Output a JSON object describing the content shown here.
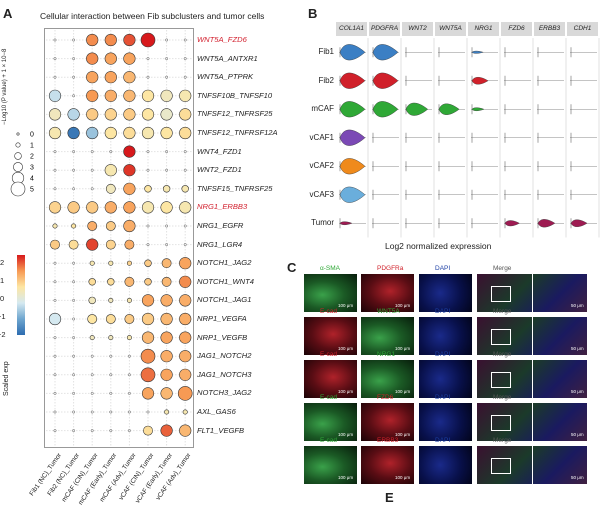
{
  "panel_a": {
    "letter": "A",
    "title": "Cellular interaction between Fib subclusters and tumor cells",
    "size_legend_title": "−Log10 (P value) + 1 × 10−8",
    "size_legend_values": [
      "0",
      "1",
      "2",
      "3",
      "4",
      "5"
    ],
    "color_legend_title": "Scaled exp",
    "color_legend_values": [
      "2",
      "1",
      "0",
      "−1",
      "−2"
    ],
    "x_labels": [
      "Fib1 (NC)_Tumor",
      "Fib2 (NC)_Tumor",
      "mCAF (CIN)_Tumor",
      "mCAF (Early)_Tumor",
      "mCAF (Adv)_Tumor",
      "vCAF (CIN)_Tumor",
      "vCAF (Early)_Tumor",
      "vCAF (Adv)_Tumor"
    ],
    "pairs": [
      {
        "label": "WNT5A_FZD6",
        "highlight": true
      },
      {
        "label": "WNT5A_ANTXR1",
        "highlight": false
      },
      {
        "label": "WNT5A_PTPRK",
        "highlight": false
      },
      {
        "label": "TNFSF10B_TNFSF10",
        "highlight": false
      },
      {
        "label": "TNFSF12_TNFRSF25",
        "highlight": false
      },
      {
        "label": "TNFSF12_TNFRSF12A",
        "highlight": false
      },
      {
        "label": "WNT4_FZD1",
        "highlight": false
      },
      {
        "label": "WNT2_FZD1",
        "highlight": false
      },
      {
        "label": "TNFSF15_TNFRSF25",
        "highlight": false
      },
      {
        "label": "NRG1_ERBB3",
        "highlight": true
      },
      {
        "label": "NRG1_EGFR",
        "highlight": false
      },
      {
        "label": "NRG1_LGR4",
        "highlight": false
      },
      {
        "label": "NOTCH1_JAG2",
        "highlight": false
      },
      {
        "label": "NOTCH1_WNT4",
        "highlight": false
      },
      {
        "label": "NOTCH1_JAG1",
        "highlight": false
      },
      {
        "label": "NRP1_VEGFA",
        "highlight": false
      },
      {
        "label": "NRP1_VEGFB",
        "highlight": false
      },
      {
        "label": "JAG1_NOTCH2",
        "highlight": false
      },
      {
        "label": "JAG1_NOTCH3",
        "highlight": false
      },
      {
        "label": "NOTCH3_JAG2",
        "highlight": false
      },
      {
        "label": "AXL_GAS6",
        "highlight": false
      },
      {
        "label": "FLT1_VEGFB",
        "highlight": false
      }
    ],
    "dots": [
      [
        [
          0,
          0
        ],
        [
          0,
          0
        ],
        [
          4,
          1.2
        ],
        [
          4,
          1.2
        ],
        [
          4,
          1.6
        ],
        [
          5,
          2.2
        ],
        [
          0,
          0
        ],
        [
          0,
          0
        ]
      ],
      [
        [
          0,
          0
        ],
        [
          0,
          0
        ],
        [
          4,
          1.2
        ],
        [
          4,
          1.0
        ],
        [
          4,
          1.0
        ],
        [
          0,
          0
        ],
        [
          0,
          0
        ],
        [
          0,
          0
        ]
      ],
      [
        [
          0,
          0
        ],
        [
          0,
          0
        ],
        [
          4,
          1.0
        ],
        [
          4,
          1.0
        ],
        [
          4,
          0.8
        ],
        [
          0,
          0
        ],
        [
          0,
          0
        ],
        [
          0,
          0
        ]
      ],
      [
        [
          4,
          -0.4
        ],
        [
          0,
          0
        ],
        [
          4,
          1.1
        ],
        [
          4,
          0.9
        ],
        [
          4,
          0.8
        ],
        [
          4,
          0.3
        ],
        [
          4,
          0.1
        ],
        [
          4,
          0.2
        ]
      ],
      [
        [
          4,
          0.1
        ],
        [
          4,
          -0.5
        ],
        [
          4,
          0.6
        ],
        [
          4,
          0.5
        ],
        [
          4,
          0.6
        ],
        [
          4,
          0.3
        ],
        [
          4,
          0.0
        ],
        [
          4,
          0.4
        ]
      ],
      [
        [
          4,
          0.2
        ],
        [
          4,
          -1.8
        ],
        [
          4,
          -0.7
        ],
        [
          4,
          0.3
        ],
        [
          4,
          0.4
        ],
        [
          4,
          0.2
        ],
        [
          4,
          0.3
        ],
        [
          4,
          0.4
        ]
      ],
      [
        [
          0,
          0
        ],
        [
          0,
          0
        ],
        [
          0,
          0
        ],
        [
          0,
          0
        ],
        [
          4,
          2.0
        ],
        [
          0,
          0
        ],
        [
          0,
          0
        ],
        [
          0,
          0
        ]
      ],
      [
        [
          0,
          0
        ],
        [
          0,
          0
        ],
        [
          0,
          0
        ],
        [
          4,
          0.2
        ],
        [
          4,
          1.8
        ],
        [
          0,
          0
        ],
        [
          0,
          0
        ],
        [
          0,
          0
        ]
      ],
      [
        [
          0,
          0
        ],
        [
          0,
          0
        ],
        [
          0,
          0
        ],
        [
          3,
          0.1
        ],
        [
          4,
          1.0
        ],
        [
          2,
          0.3
        ],
        [
          2,
          0.2
        ],
        [
          2,
          0.2
        ]
      ],
      [
        [
          4,
          0.5
        ],
        [
          4,
          0.6
        ],
        [
          4,
          0.6
        ],
        [
          4,
          0.9
        ],
        [
          4,
          1.0
        ],
        [
          4,
          0.2
        ],
        [
          4,
          0.3
        ],
        [
          4,
          0.2
        ]
      ],
      [
        [
          1,
          0.2
        ],
        [
          1,
          0.3
        ],
        [
          3,
          0.9
        ],
        [
          3,
          0.6
        ],
        [
          4,
          0.9
        ],
        [
          0,
          0
        ],
        [
          0,
          0
        ],
        [
          0,
          0
        ]
      ],
      [
        [
          3,
          0.6
        ],
        [
          3,
          0.4
        ],
        [
          4,
          1.7
        ],
        [
          3,
          0.5
        ],
        [
          3,
          0.9
        ],
        [
          0,
          0
        ],
        [
          0,
          0
        ],
        [
          0,
          0
        ]
      ],
      [
        [
          0,
          0
        ],
        [
          0,
          0
        ],
        [
          1,
          0.2
        ],
        [
          1,
          0.2
        ],
        [
          1,
          0.5
        ],
        [
          2,
          0.6
        ],
        [
          3,
          0.8
        ],
        [
          4,
          1.0
        ]
      ],
      [
        [
          0,
          0
        ],
        [
          0,
          0
        ],
        [
          2,
          0.4
        ],
        [
          2,
          0.4
        ],
        [
          3,
          0.8
        ],
        [
          2,
          0.6
        ],
        [
          3,
          0.8
        ],
        [
          4,
          1.2
        ]
      ],
      [
        [
          0,
          0
        ],
        [
          0,
          0
        ],
        [
          2,
          0.1
        ],
        [
          1,
          0.1
        ],
        [
          1,
          0.2
        ],
        [
          4,
          1.0
        ],
        [
          4,
          0.9
        ],
        [
          4,
          0.9
        ]
      ],
      [
        [
          4,
          -0.3
        ],
        [
          0,
          0
        ],
        [
          3,
          0.3
        ],
        [
          3,
          0.4
        ],
        [
          3,
          0.6
        ],
        [
          4,
          0.6
        ],
        [
          4,
          0.8
        ],
        [
          4,
          0.9
        ]
      ],
      [
        [
          0,
          0
        ],
        [
          0,
          0
        ],
        [
          1,
          0.1
        ],
        [
          1,
          0.1
        ],
        [
          1,
          0.2
        ],
        [
          4,
          0.8
        ],
        [
          4,
          1.0
        ],
        [
          4,
          1.0
        ]
      ],
      [
        [
          0,
          0
        ],
        [
          0,
          0
        ],
        [
          0,
          0
        ],
        [
          0,
          0
        ],
        [
          0,
          0
        ],
        [
          5,
          1.2
        ],
        [
          4,
          0.9
        ],
        [
          4,
          0.9
        ]
      ],
      [
        [
          0,
          0
        ],
        [
          0,
          0
        ],
        [
          0,
          0
        ],
        [
          0,
          0
        ],
        [
          0,
          0
        ],
        [
          5,
          1.4
        ],
        [
          4,
          1.0
        ],
        [
          4,
          0.9
        ]
      ],
      [
        [
          0,
          0
        ],
        [
          0,
          0
        ],
        [
          0,
          0
        ],
        [
          0,
          0
        ],
        [
          0,
          0
        ],
        [
          4,
          1.0
        ],
        [
          4,
          0.8
        ],
        [
          5,
          1.1
        ]
      ],
      [
        [
          0,
          0
        ],
        [
          0,
          0
        ],
        [
          0,
          0
        ],
        [
          0,
          0
        ],
        [
          0,
          0
        ],
        [
          0,
          0
        ],
        [
          1,
          0.2
        ],
        [
          1,
          0.2
        ]
      ],
      [
        [
          0,
          0
        ],
        [
          0,
          0
        ],
        [
          0,
          0
        ],
        [
          0,
          0
        ],
        [
          0,
          0
        ],
        [
          3,
          0.4
        ],
        [
          4,
          1.5
        ],
        [
          4,
          0.8
        ]
      ]
    ]
  },
  "panel_b": {
    "letter": "B",
    "genes": [
      "COL1A1",
      "PDGFRA",
      "WNT2",
      "WNT5A",
      "NRG1",
      "FZD6",
      "ERBB3",
      "CDH1"
    ],
    "rows": [
      "Fib1",
      "Fib2",
      "mCAF",
      "vCAF1",
      "vCAF2",
      "vCAF3",
      "Tumor"
    ],
    "row_colors": [
      "#3b7fc4",
      "#d0202a",
      "#2fa836",
      "#7b49b5",
      "#ef8a1c",
      "#6aaedc",
      "#9e1b52"
    ],
    "xlabel": "Log2 normalized expression"
  },
  "panel_c": {
    "letter": "C",
    "rows": [
      {
        "labels": [
          [
            "α-SMA",
            "#2ea836"
          ],
          [
            "PDGFRa",
            "#d0202a"
          ],
          [
            "DAPI",
            "#1b3fa5"
          ],
          [
            "Merge",
            "#555555"
          ]
        ]
      },
      {
        "labels": [
          [
            "E-cad",
            "#d0202a"
          ],
          [
            "WNT5A",
            "#2ea836"
          ],
          [
            "DAPI",
            "#1b3fa5"
          ],
          [
            "Merge",
            "#555555"
          ]
        ]
      },
      {
        "labels": [
          [
            "E-cad",
            "#d0202a"
          ],
          [
            "NRG1",
            "#2ea836"
          ],
          [
            "DAPI",
            "#1b3fa5"
          ],
          [
            "Merge",
            "#555555"
          ]
        ]
      },
      {
        "labels": [
          [
            "E-cad",
            "#2ea836"
          ],
          [
            "FZD6",
            "#d0202a"
          ],
          [
            "DAPI",
            "#1b3fa5"
          ],
          [
            "Merge",
            "#555555"
          ]
        ]
      },
      {
        "labels": [
          [
            "E-cad",
            "#2ea836"
          ],
          [
            "ERBB3",
            "#d0202a"
          ],
          [
            "DAPI",
            "#1b3fa5"
          ],
          [
            "Merge",
            "#555555"
          ]
        ]
      }
    ],
    "scale_100": "100 μm",
    "scale_50": "50 μm"
  },
  "panel_e_letter": "E"
}
